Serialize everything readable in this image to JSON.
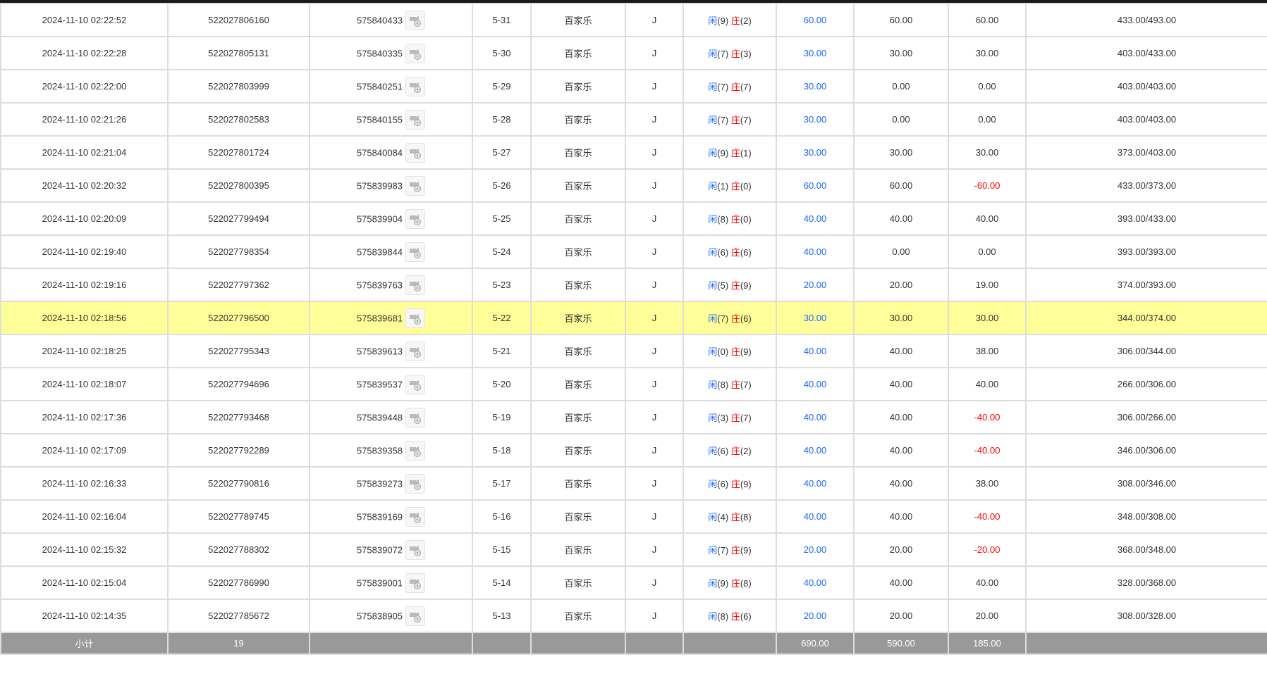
{
  "colors": {
    "accent_blue": "#1a66ff",
    "loss_red": "#ff0000",
    "highlight": "#ffff99",
    "footer_bg": "#999999"
  },
  "rows": [
    {
      "time": "2024-11-10 02:22:52",
      "bet_id": "522027806160",
      "round_id": "575840433",
      "table": "5-31",
      "game": "百家乐",
      "type": "J",
      "player": "闲",
      "player_pts": "(9)",
      "banker": "庄",
      "banker_pts": "(2)",
      "bet": "60.00",
      "valid": "60.00",
      "win": "60.00",
      "balance": "433.00/493.00"
    },
    {
      "time": "2024-11-10 02:22:28",
      "bet_id": "522027805131",
      "round_id": "575840335",
      "table": "5-30",
      "game": "百家乐",
      "type": "J",
      "player": "闲",
      "player_pts": "(7)",
      "banker": "庄",
      "banker_pts": "(3)",
      "bet": "30.00",
      "valid": "30.00",
      "win": "30.00",
      "balance": "403.00/433.00"
    },
    {
      "time": "2024-11-10 02:22:00",
      "bet_id": "522027803999",
      "round_id": "575840251",
      "table": "5-29",
      "game": "百家乐",
      "type": "J",
      "player": "闲",
      "player_pts": "(7)",
      "banker": "庄",
      "banker_pts": "(7)",
      "bet": "30.00",
      "valid": "0.00",
      "win": "0.00",
      "balance": "403.00/403.00"
    },
    {
      "time": "2024-11-10 02:21:26",
      "bet_id": "522027802583",
      "round_id": "575840155",
      "table": "5-28",
      "game": "百家乐",
      "type": "J",
      "player": "闲",
      "player_pts": "(7)",
      "banker": "庄",
      "banker_pts": "(7)",
      "bet": "30.00",
      "valid": "0.00",
      "win": "0.00",
      "balance": "403.00/403.00"
    },
    {
      "time": "2024-11-10 02:21:04",
      "bet_id": "522027801724",
      "round_id": "575840084",
      "table": "5-27",
      "game": "百家乐",
      "type": "J",
      "player": "闲",
      "player_pts": "(9)",
      "banker": "庄",
      "banker_pts": "(1)",
      "bet": "30.00",
      "valid": "30.00",
      "win": "30.00",
      "balance": "373.00/403.00"
    },
    {
      "time": "2024-11-10 02:20:32",
      "bet_id": "522027800395",
      "round_id": "575839983",
      "table": "5-26",
      "game": "百家乐",
      "type": "J",
      "player": "闲",
      "player_pts": "(1)",
      "banker": "庄",
      "banker_pts": "(0)",
      "bet": "60.00",
      "valid": "60.00",
      "win": "-60.00",
      "balance": "433.00/373.00"
    },
    {
      "time": "2024-11-10 02:20:09",
      "bet_id": "522027799494",
      "round_id": "575839904",
      "table": "5-25",
      "game": "百家乐",
      "type": "J",
      "player": "闲",
      "player_pts": "(8)",
      "banker": "庄",
      "banker_pts": "(0)",
      "bet": "40.00",
      "valid": "40.00",
      "win": "40.00",
      "balance": "393.00/433.00"
    },
    {
      "time": "2024-11-10 02:19:40",
      "bet_id": "522027798354",
      "round_id": "575839844",
      "table": "5-24",
      "game": "百家乐",
      "type": "J",
      "player": "闲",
      "player_pts": "(6)",
      "banker": "庄",
      "banker_pts": "(6)",
      "bet": "40.00",
      "valid": "0.00",
      "win": "0.00",
      "balance": "393.00/393.00"
    },
    {
      "time": "2024-11-10 02:19:16",
      "bet_id": "522027797362",
      "round_id": "575839763",
      "table": "5-23",
      "game": "百家乐",
      "type": "J",
      "player": "闲",
      "player_pts": "(5)",
      "banker": "庄",
      "banker_pts": "(9)",
      "bet": "20.00",
      "valid": "20.00",
      "win": "19.00",
      "balance": "374.00/393.00"
    },
    {
      "time": "2024-11-10 02:18:56",
      "bet_id": "522027796500",
      "round_id": "575839681",
      "table": "5-22",
      "game": "百家乐",
      "type": "J",
      "player": "闲",
      "player_pts": "(7)",
      "banker": "庄",
      "banker_pts": "(6)",
      "bet": "30.00",
      "valid": "30.00",
      "win": "30.00",
      "balance": "344.00/374.00",
      "highlighted": true
    },
    {
      "time": "2024-11-10 02:18:25",
      "bet_id": "522027795343",
      "round_id": "575839613",
      "table": "5-21",
      "game": "百家乐",
      "type": "J",
      "player": "闲",
      "player_pts": "(0)",
      "banker": "庄",
      "banker_pts": "(9)",
      "bet": "40.00",
      "valid": "40.00",
      "win": "38.00",
      "balance": "306.00/344.00"
    },
    {
      "time": "2024-11-10 02:18:07",
      "bet_id": "522027794696",
      "round_id": "575839537",
      "table": "5-20",
      "game": "百家乐",
      "type": "J",
      "player": "闲",
      "player_pts": "(8)",
      "banker": "庄",
      "banker_pts": "(7)",
      "bet": "40.00",
      "valid": "40.00",
      "win": "40.00",
      "balance": "266.00/306.00"
    },
    {
      "time": "2024-11-10 02:17:36",
      "bet_id": "522027793468",
      "round_id": "575839448",
      "table": "5-19",
      "game": "百家乐",
      "type": "J",
      "player": "闲",
      "player_pts": "(3)",
      "banker": "庄",
      "banker_pts": "(7)",
      "bet": "40.00",
      "valid": "40.00",
      "win": "-40.00",
      "balance": "306.00/266.00"
    },
    {
      "time": "2024-11-10 02:17:09",
      "bet_id": "522027792289",
      "round_id": "575839358",
      "table": "5-18",
      "game": "百家乐",
      "type": "J",
      "player": "闲",
      "player_pts": "(6)",
      "banker": "庄",
      "banker_pts": "(2)",
      "bet": "40.00",
      "valid": "40.00",
      "win": "-40.00",
      "balance": "346.00/306.00"
    },
    {
      "time": "2024-11-10 02:16:33",
      "bet_id": "522027790816",
      "round_id": "575839273",
      "table": "5-17",
      "game": "百家乐",
      "type": "J",
      "player": "闲",
      "player_pts": "(6)",
      "banker": "庄",
      "banker_pts": "(9)",
      "bet": "40.00",
      "valid": "40.00",
      "win": "38.00",
      "balance": "308.00/346.00"
    },
    {
      "time": "2024-11-10 02:16:04",
      "bet_id": "522027789745",
      "round_id": "575839169",
      "table": "5-16",
      "game": "百家乐",
      "type": "J",
      "player": "闲",
      "player_pts": "(4)",
      "banker": "庄",
      "banker_pts": "(8)",
      "bet": "40.00",
      "valid": "40.00",
      "win": "-40.00",
      "balance": "348.00/308.00"
    },
    {
      "time": "2024-11-10 02:15:32",
      "bet_id": "522027788302",
      "round_id": "575839072",
      "table": "5-15",
      "game": "百家乐",
      "type": "J",
      "player": "闲",
      "player_pts": "(7)",
      "banker": "庄",
      "banker_pts": "(9)",
      "bet": "20.00",
      "valid": "20.00",
      "win": "-20.00",
      "balance": "368.00/348.00"
    },
    {
      "time": "2024-11-10 02:15:04",
      "bet_id": "522027786990",
      "round_id": "575839001",
      "table": "5-14",
      "game": "百家乐",
      "type": "J",
      "player": "闲",
      "player_pts": "(9)",
      "banker": "庄",
      "banker_pts": "(8)",
      "bet": "40.00",
      "valid": "40.00",
      "win": "40.00",
      "balance": "328.00/368.00"
    },
    {
      "time": "2024-11-10 02:14:35",
      "bet_id": "522027785672",
      "round_id": "575838905",
      "table": "5-13",
      "game": "百家乐",
      "type": "J",
      "player": "闲",
      "player_pts": "(8)",
      "banker": "庄",
      "banker_pts": "(6)",
      "bet": "20.00",
      "valid": "20.00",
      "win": "20.00",
      "balance": "308.00/328.00"
    }
  ],
  "footer": {
    "label": "小计",
    "count": "19",
    "bet_total": "690.00",
    "valid_total": "590.00",
    "win_total": "185.00"
  }
}
